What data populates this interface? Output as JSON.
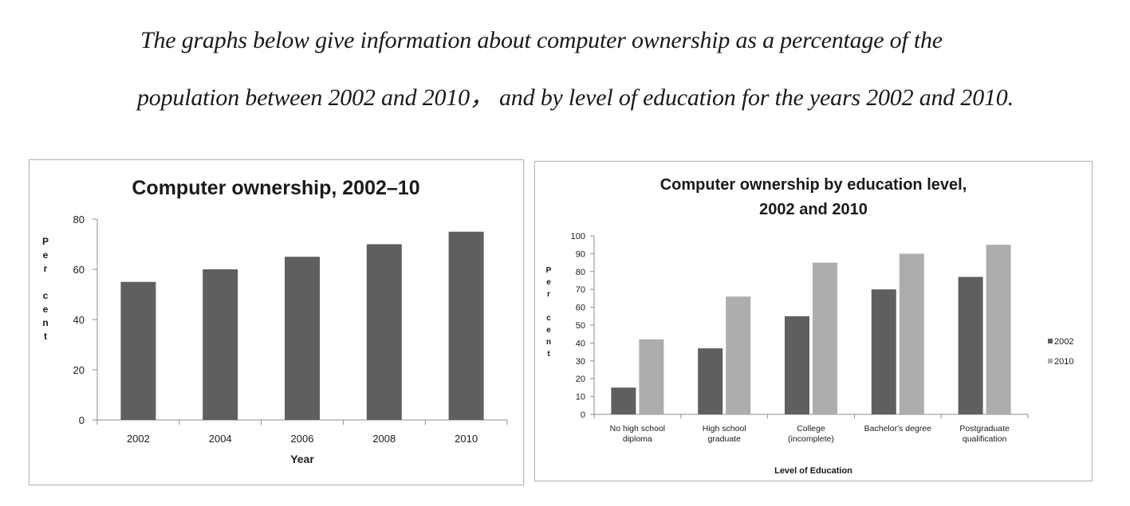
{
  "intro": {
    "line1": "The graphs below give information about computer ownership as a percentage of the",
    "line2": "population between 2002 and 2010， and by level of education for the years 2002 and 2010."
  },
  "colors": {
    "series_2002": "#5f5f5f",
    "series_2010": "#adadad",
    "axis": "#8c8c8c"
  },
  "chart_data": [
    {
      "type": "bar",
      "title": "Computer ownership, 2002–10",
      "xlabel": "Year",
      "ylabel": "Per cent",
      "categories": [
        "2002",
        "2004",
        "2006",
        "2008",
        "2010"
      ],
      "values": [
        55,
        60,
        65,
        70,
        75
      ],
      "ylim": [
        0,
        80
      ],
      "yticks": [
        0,
        20,
        40,
        60,
        80
      ],
      "grid": false,
      "legend": "none"
    },
    {
      "type": "bar",
      "title_lines": [
        "Computer ownership by education level,",
        "2002 and 2010"
      ],
      "xlabel": "Level of Education",
      "ylabel": "Per cent",
      "categories": [
        [
          "No high school",
          "diploma"
        ],
        [
          "High school",
          "graduate"
        ],
        [
          "College",
          "(incomplete)"
        ],
        [
          "Bachelor's degree"
        ],
        [
          "Postgraduate",
          "qualification"
        ]
      ],
      "series": [
        {
          "name": "2002",
          "values": [
            15,
            37,
            55,
            70,
            77
          ]
        },
        {
          "name": "2010",
          "values": [
            42,
            66,
            85,
            90,
            95
          ]
        }
      ],
      "ylim": [
        0,
        100
      ],
      "yticks": [
        0,
        10,
        20,
        30,
        40,
        50,
        60,
        70,
        80,
        90,
        100
      ],
      "grid": false,
      "legend": "right"
    }
  ]
}
